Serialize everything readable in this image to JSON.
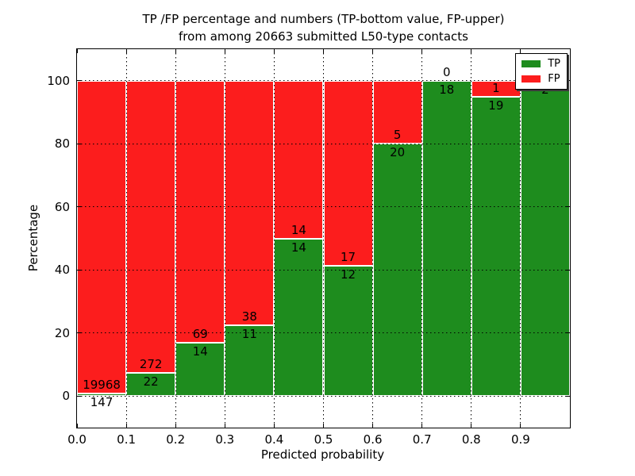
{
  "figure": {
    "title_line1": "TP /FP percentage and numbers (TP-bottom value, FP-upper)",
    "title_line2": "from among 20663 submitted L50-type contacts",
    "background": "#ffffff"
  },
  "chart_data": {
    "type": "bar",
    "stacked": true,
    "title": "TP /FP percentage and numbers (TP-bottom value, FP-upper) from among 20663 submitted L50-type contacts",
    "xlabel": "Predicted probability",
    "ylabel": "Percentage",
    "total_contacts": 20663,
    "bin_start": [
      0.0,
      0.1,
      0.2,
      0.3,
      0.4,
      0.5,
      0.6,
      0.7,
      0.8,
      0.9
    ],
    "bin_width": 0.1,
    "series": [
      {
        "name": "TP",
        "color": "#1e8c1e",
        "counts": [
          147,
          22,
          14,
          11,
          14,
          12,
          20,
          18,
          19,
          2
        ]
      },
      {
        "name": "FP",
        "color": "#fc1d1d",
        "counts": [
          19968,
          272,
          69,
          38,
          14,
          17,
          5,
          0,
          1,
          0
        ]
      }
    ],
    "tp_percent": [
      0.73,
      7.48,
      16.87,
      22.45,
      50.0,
      41.38,
      80.0,
      100.0,
      95.0,
      100.0
    ],
    "xticks": [
      "0.0",
      "0.1",
      "0.2",
      "0.3",
      "0.4",
      "0.5",
      "0.6",
      "0.7",
      "0.8",
      "0.9"
    ],
    "yticks": [
      "0",
      "20",
      "40",
      "60",
      "80",
      "100"
    ],
    "xlim": [
      0.0,
      1.0
    ],
    "ylim": [
      -10,
      110
    ],
    "grid": "dotted",
    "legend": {
      "position": "upper-right",
      "shadow": true,
      "entries": [
        {
          "label": "TP",
          "color": "#1e8c1e"
        },
        {
          "label": "FP",
          "color": "#fc1d1d"
        }
      ]
    }
  }
}
